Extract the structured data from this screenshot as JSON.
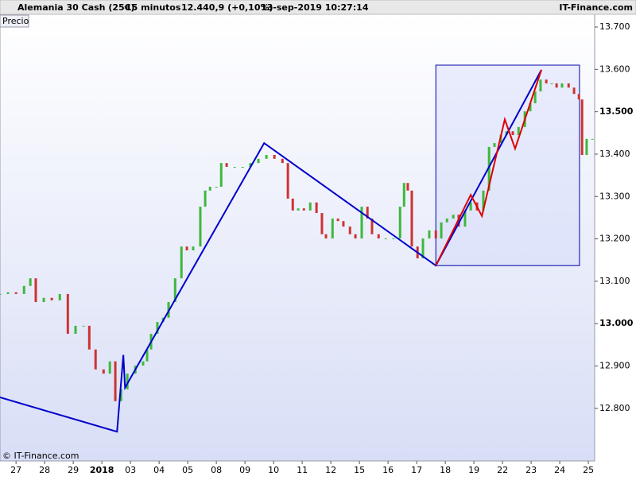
{
  "header": {
    "instrument": "Alemania 30 Cash (25€)",
    "timeframe": "15 minutos",
    "quote": "12.440,9 (+0,10%)",
    "timestamp": "13-sep-2019 10:27:14",
    "brand": "IT-Finance.com"
  },
  "panel_label": "Precio",
  "footer": "© IT-Finance.com",
  "chart_data": {
    "type": "line",
    "xlim": [
      -0.56,
      20.22
    ],
    "ylim": [
      12676,
      13730
    ],
    "xticks": [
      {
        "value": 0,
        "label": "27"
      },
      {
        "value": 1,
        "label": "28"
      },
      {
        "value": 2,
        "label": "29"
      },
      {
        "value": 3,
        "label": "2018"
      },
      {
        "value": 4,
        "label": "03"
      },
      {
        "value": 5,
        "label": "04"
      },
      {
        "value": 6,
        "label": "05"
      },
      {
        "value": 7,
        "label": "08"
      },
      {
        "value": 8,
        "label": "09"
      },
      {
        "value": 9,
        "label": "10"
      },
      {
        "value": 10,
        "label": "11"
      },
      {
        "value": 11,
        "label": "12"
      },
      {
        "value": 12,
        "label": "15"
      },
      {
        "value": 13,
        "label": "16"
      },
      {
        "value": 14,
        "label": "17"
      },
      {
        "value": 15,
        "label": "18"
      },
      {
        "value": 16,
        "label": "19"
      },
      {
        "value": 17,
        "label": "22"
      },
      {
        "value": 18,
        "label": "23"
      },
      {
        "value": 19,
        "label": "24"
      },
      {
        "value": 20,
        "label": "25"
      }
    ],
    "yticks": [
      {
        "value": 12800,
        "label": "12.800"
      },
      {
        "value": 12900,
        "label": "12.900"
      },
      {
        "value": 13000,
        "label": "13.000"
      },
      {
        "value": 13100,
        "label": "13.100"
      },
      {
        "value": 13200,
        "label": "13.200"
      },
      {
        "value": 13300,
        "label": "13.300"
      },
      {
        "value": 13400,
        "label": "13.400"
      },
      {
        "value": 13500,
        "label": "13.500"
      },
      {
        "value": 13600,
        "label": "13.600"
      },
      {
        "value": 13700,
        "label": "13.700"
      }
    ],
    "series": [
      {
        "color_up": "#3cb83c",
        "color_down": "#cc3333",
        "x": [
          -0.56,
          -0.28,
          0,
          0.28,
          0.5,
          0.69,
          0.97,
          1.25,
          1.53,
          1.81,
          2.08,
          2.36,
          2.56,
          2.78,
          3.06,
          3.28,
          3.47,
          3.67,
          3.89,
          4.17,
          4.44,
          4.58,
          4.72,
          4.94,
          5.14,
          5.33,
          5.56,
          5.78,
          5.97,
          6.19,
          6.44,
          6.61,
          6.78,
          7,
          7.17,
          7.36,
          7.64,
          7.92,
          8.19,
          8.47,
          8.75,
          9.03,
          9.31,
          9.5,
          9.67,
          9.86,
          10.06,
          10.28,
          10.5,
          10.69,
          10.83,
          11.06,
          11.25,
          11.44,
          11.67,
          11.86,
          12.08,
          12.28,
          12.44,
          12.67,
          12.92,
          13.19,
          13.42,
          13.56,
          13.69,
          13.83,
          14.03,
          14.22,
          14.44,
          14.67,
          14.86,
          15.06,
          15.28,
          15.47,
          15.69,
          15.89,
          16.11,
          16.33,
          16.53,
          16.72,
          16.94,
          17.14,
          17.36,
          17.56,
          17.78,
          17.97,
          18.14,
          18.33,
          18.53,
          18.72,
          18.89,
          19.08,
          19.31,
          19.5,
          19.67,
          19.78,
          19.94,
          20.14
        ],
        "values": [
          13070,
          13074,
          13070,
          13089,
          13107,
          13051,
          13061,
          13055,
          13070,
          12976,
          12995,
          12995,
          12939,
          12892,
          12882,
          12911,
          12817,
          12845,
          12882,
          12901,
          12911,
          12939,
          12976,
          13004,
          13014,
          13051,
          13107,
          13182,
          13173,
          13182,
          13276,
          13314,
          13323,
          13323,
          13379,
          13370,
          13370,
          13370,
          13379,
          13389,
          13398,
          13389,
          13379,
          13295,
          13267,
          13272,
          13267,
          13286,
          13261,
          13211,
          13201,
          13248,
          13242,
          13229,
          13211,
          13201,
          13276,
          13248,
          13211,
          13201,
          13201,
          13201,
          13276,
          13332,
          13314,
          13182,
          13154,
          13201,
          13220,
          13201,
          13239,
          13248,
          13257,
          13229,
          13267,
          13286,
          13267,
          13314,
          13417,
          13426,
          13445,
          13454,
          13445,
          13464,
          13501,
          13520,
          13548,
          13576,
          13567,
          13567,
          13557,
          13567,
          13557,
          13542,
          13529,
          13398,
          13436,
          13436
        ]
      }
    ],
    "lines": [
      {
        "color": "#0000cc",
        "x": [
          -0.56,
          3.53,
          3.75,
          3.81,
          8.67,
          14.67,
          18.36
        ],
        "values": [
          12826,
          12745,
          12926,
          12849,
          13426,
          13137,
          13599
        ]
      },
      {
        "color": "#dd0000",
        "x": [
          14.67,
          15.89,
          16.28,
          17.08,
          17.44,
          18.36
        ],
        "values": [
          13137,
          13304,
          13254,
          13482,
          13413,
          13599
        ]
      }
    ],
    "rectangle": {
      "color": "#0000aa",
      "x": [
        14.67,
        19.69
      ],
      "values": [
        13137,
        13610
      ]
    }
  }
}
